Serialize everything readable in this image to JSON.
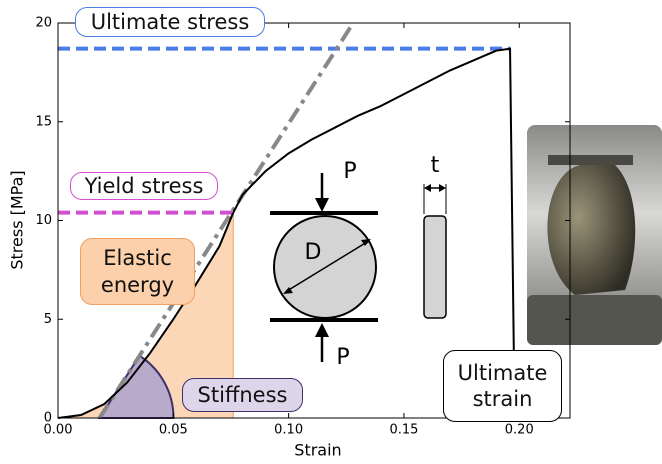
{
  "chart_data": {
    "type": "line",
    "xlabel": "Strain",
    "ylabel": "Stress [MPa]",
    "xlim": [
      0,
      0.222
    ],
    "ylim": [
      0,
      20
    ],
    "xticks": [
      {
        "value": 0,
        "label": "0.00"
      },
      {
        "value": 0.05,
        "label": "0.05"
      },
      {
        "value": 0.1,
        "label": "0.10"
      },
      {
        "value": 0.15,
        "label": "0.15"
      },
      {
        "value": 0.2,
        "label": "0.20"
      }
    ],
    "yticks": [
      0,
      5,
      10,
      15,
      20
    ],
    "x": [
      0,
      0.01,
      0.02,
      0.03,
      0.04,
      0.05,
      0.06,
      0.07,
      0.076,
      0.08,
      0.09,
      0.1,
      0.11,
      0.12,
      0.13,
      0.14,
      0.15,
      0.16,
      0.17,
      0.18,
      0.19,
      0.196,
      0.198
    ],
    "series": [
      {
        "color": "#000000",
        "values": [
          0,
          0.15,
          0.7,
          1.8,
          3.3,
          5.0,
          6.8,
          8.7,
          10.4,
          11.3,
          12.5,
          13.4,
          14.1,
          14.7,
          15.3,
          15.8,
          16.4,
          17.0,
          17.6,
          18.1,
          18.6,
          18.7,
          0
        ]
      }
    ],
    "tangent": {
      "x": [
        0.018,
        0.128
      ],
      "y": [
        0,
        20
      ],
      "color": "#888888"
    },
    "ultimate_stress": {
      "label": "Ultimate stress",
      "value": 18.7,
      "end": 0.196,
      "color": "#4a7de8"
    },
    "yield_stress": {
      "label": "Yield stress",
      "value": 10.4,
      "end": 0.076,
      "color": "#d050d0"
    },
    "elastic_energy": {
      "label": "Elastic energy",
      "end": 0.076,
      "color": "#f9caa0"
    },
    "stiffness": {
      "label": "Stiffness",
      "color": "#b8aacb"
    },
    "ultimate_strain": {
      "label": "Ultimate strain"
    }
  },
  "diagram": {
    "load_top": "P",
    "load_bottom": "P",
    "diameter": "D",
    "thickness": "t"
  }
}
